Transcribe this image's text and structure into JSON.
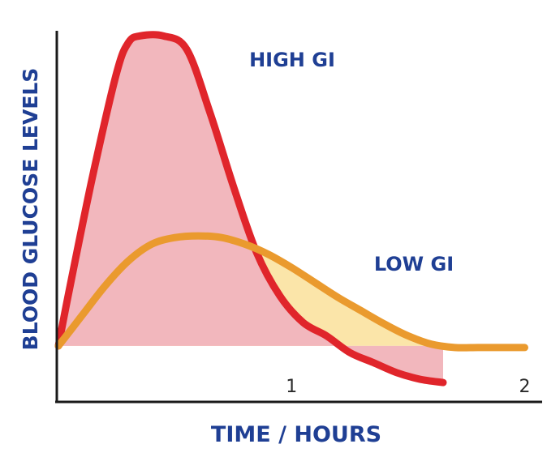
{
  "chart_data": {
    "type": "area",
    "title": "",
    "xlabel": "TIME / HOURS",
    "ylabel": "BLOOD GLUCOSE LEVELS",
    "x_ticks": [
      "1",
      "2"
    ],
    "x_tick_values": [
      1,
      2
    ],
    "xlim": [
      0,
      2.04
    ],
    "ylim": [
      -1,
      9.6
    ],
    "grid": false,
    "legend": "none",
    "series": [
      {
        "name": "HIGH GI",
        "color": "#e0252b",
        "fill": "#f2b7bd",
        "x": [
          0,
          0.05,
          0.15,
          0.25,
          0.3,
          0.35,
          0.45,
          0.55,
          0.65,
          0.75,
          0.85,
          0.95,
          1.05,
          1.15,
          1.25,
          1.35,
          1.45,
          1.55,
          1.65
        ],
        "y": [
          0,
          1.8,
          5.2,
          8.2,
          9.1,
          9.3,
          9.3,
          8.9,
          7.0,
          4.8,
          2.8,
          1.5,
          0.7,
          0.3,
          -0.2,
          -0.5,
          -0.8,
          -1.0,
          -1.1
        ]
      },
      {
        "name": "LOW GI",
        "color": "#ea9a2e",
        "fill": "#fbe5a9",
        "x": [
          0,
          0.1,
          0.2,
          0.3,
          0.4,
          0.5,
          0.6,
          0.7,
          0.8,
          0.9,
          1.0,
          1.1,
          1.2,
          1.3,
          1.4,
          1.5,
          1.6,
          1.7,
          1.8,
          1.9,
          2.0
        ],
        "y": [
          0,
          0.9,
          1.8,
          2.55,
          3.05,
          3.25,
          3.3,
          3.25,
          3.05,
          2.75,
          2.35,
          1.9,
          1.45,
          1.05,
          0.65,
          0.3,
          0.05,
          -0.05,
          -0.05,
          -0.05,
          -0.05
        ]
      }
    ]
  }
}
